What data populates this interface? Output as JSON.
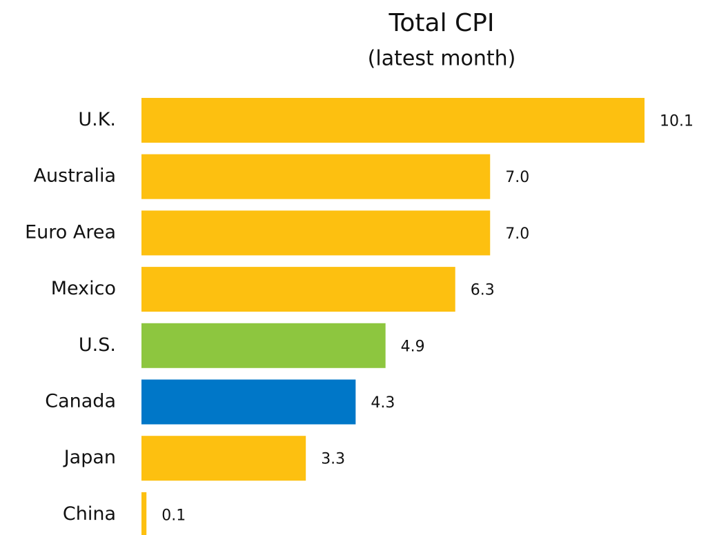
{
  "chart_data": {
    "type": "bar",
    "orientation": "horizontal",
    "title": "Total CPI",
    "subtitle": "(latest month)",
    "categories": [
      "U.K.",
      "Australia",
      "Euro Area",
      "Mexico",
      "U.S.",
      "Canada",
      "Japan",
      "China"
    ],
    "values": [
      10.1,
      7.0,
      7.0,
      6.3,
      4.9,
      4.3,
      3.3,
      0.1
    ],
    "value_labels": [
      "10.1",
      "7.0",
      "7.0",
      "6.3",
      "4.9",
      "4.3",
      "3.3",
      "0.1"
    ],
    "colors": [
      "#fdc010",
      "#fdc010",
      "#fdc010",
      "#fdc010",
      "#8dc63f",
      "#0077c8",
      "#fdc010",
      "#fdc010"
    ]
  }
}
